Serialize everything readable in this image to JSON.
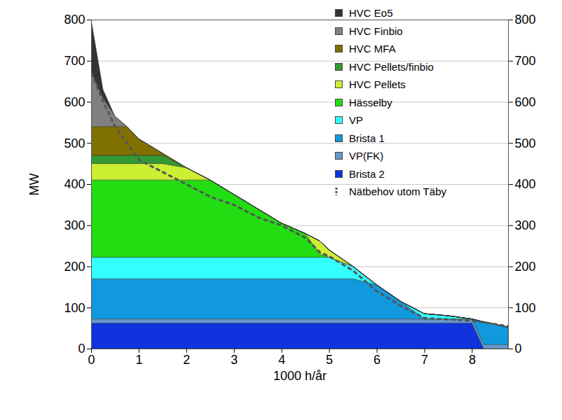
{
  "chart_data": {
    "type": "area",
    "stacked": true,
    "xlabel": "1000 h/år",
    "ylabel": "MW",
    "x": [
      0,
      0.25,
      0.5,
      0.75,
      1,
      1.5,
      2,
      2.5,
      3,
      3.5,
      4,
      4.5,
      4.8,
      5,
      5.5,
      6,
      6.5,
      7,
      7.5,
      8,
      8.25,
      8.76
    ],
    "xlim": [
      0,
      8.76
    ],
    "xticks": [
      0,
      1,
      2,
      3,
      4,
      5,
      6,
      7,
      8
    ],
    "ylim": [
      0,
      800
    ],
    "yticks": [
      0,
      100,
      200,
      300,
      400,
      500,
      600,
      700,
      800
    ],
    "y2lim": [
      0,
      800
    ],
    "y2ticks": [
      0,
      100,
      200,
      300,
      400,
      500,
      600,
      700,
      800
    ],
    "grid": true,
    "legend": "top-right",
    "series": [
      {
        "name": "HVC Eo5",
        "color": "#333333",
        "values": [
          125,
          20,
          0,
          0,
          0,
          0,
          0,
          0,
          0,
          0,
          0,
          0,
          0,
          0,
          0,
          0,
          0,
          0,
          0,
          0,
          0,
          0
        ]
      },
      {
        "name": "HVC Finbio",
        "color": "#808080",
        "values": [
          135,
          70,
          25,
          0,
          0,
          0,
          0,
          0,
          0,
          0,
          0,
          0,
          0,
          0,
          0,
          0,
          0,
          0,
          0,
          0,
          0,
          0
        ]
      },
      {
        "name": "HVC MFA",
        "color": "#807000",
        "values": [
          70,
          70,
          70,
          70,
          40,
          5,
          0,
          0,
          0,
          0,
          0,
          0,
          0,
          0,
          0,
          0,
          0,
          0,
          0,
          0,
          0,
          0
        ]
      },
      {
        "name": "HVC Pellets/finbio",
        "color": "#339933",
        "values": [
          20,
          20,
          20,
          20,
          20,
          20,
          0,
          0,
          0,
          0,
          0,
          0,
          0,
          0,
          0,
          0,
          0,
          0,
          0,
          0,
          0,
          0
        ]
      },
      {
        "name": "HVC Pellets",
        "color": "#ccee33",
        "values": [
          40,
          40,
          40,
          40,
          40,
          40,
          30,
          0,
          0,
          0,
          0,
          0,
          32,
          18,
          0,
          0,
          0,
          0,
          0,
          0,
          0,
          0
        ]
      },
      {
        "name": "Hässelby",
        "color": "#22dd11",
        "values": [
          188,
          188,
          188,
          188,
          188,
          188,
          188,
          188,
          153,
          118,
          83,
          58,
          8,
          0,
          0,
          0,
          0,
          0,
          0,
          0,
          0,
          0
        ]
      },
      {
        "name": "VP",
        "color": "#33ffff",
        "values": [
          52,
          52,
          52,
          52,
          52,
          52,
          52,
          52,
          52,
          52,
          52,
          52,
          52,
          52,
          30,
          0,
          0,
          13,
          8,
          0,
          0,
          0
        ]
      },
      {
        "name": "Brista 1",
        "color": "#1199dd",
        "values": [
          98,
          98,
          98,
          98,
          98,
          98,
          98,
          98,
          98,
          98,
          98,
          98,
          98,
          98,
          98,
          83,
          43,
          0,
          0,
          0,
          55,
          42
        ]
      },
      {
        "name": "VP(FK)",
        "color": "#6699cc",
        "values": [
          10,
          10,
          10,
          10,
          10,
          10,
          10,
          10,
          10,
          10,
          10,
          10,
          10,
          10,
          10,
          10,
          10,
          10,
          10,
          10,
          10,
          10
        ]
      },
      {
        "name": "Brista 2",
        "color": "#1133dd",
        "values": [
          62,
          62,
          62,
          62,
          62,
          62,
          62,
          62,
          62,
          62,
          62,
          62,
          62,
          62,
          62,
          62,
          62,
          62,
          62,
          62,
          0,
          0
        ]
      },
      {
        "name": "Nätbehov utom Täby",
        "type": "line",
        "line_style": "dashed",
        "color": "#555555",
        "values": [
          670,
          600,
          540,
          500,
          460,
          430,
          400,
          370,
          350,
          320,
          300,
          270,
          235,
          225,
          190,
          140,
          105,
          75,
          72,
          68,
          65,
          55
        ]
      }
    ]
  }
}
